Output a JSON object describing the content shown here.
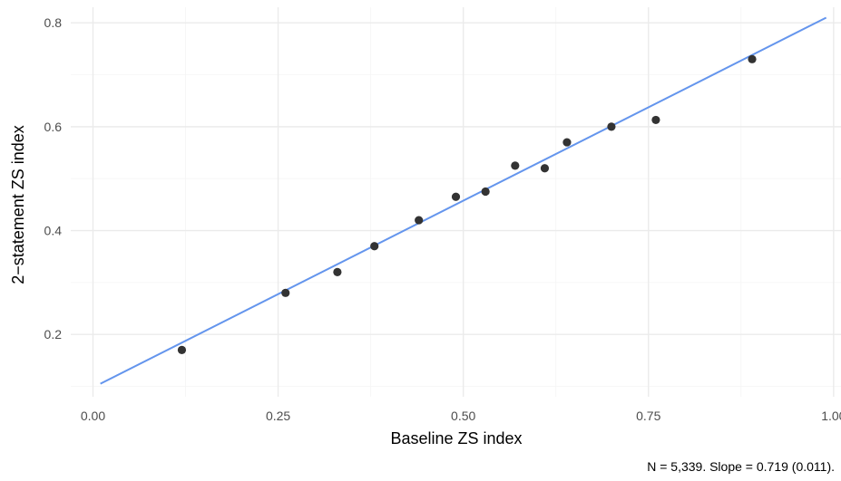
{
  "chart_data": {
    "type": "scatter",
    "title": "",
    "xlabel": "Baseline ZS index",
    "ylabel": "2−statement ZS index",
    "caption": "N = 5,339. Slope = 0.719 (0.011).",
    "xlim": [
      -0.03,
      1.01
    ],
    "ylim": [
      0.08,
      0.83
    ],
    "x_ticks": [
      0.0,
      0.25,
      0.5,
      0.75,
      1.0
    ],
    "x_tick_labels": [
      "0.00",
      "0.25",
      "0.50",
      "0.75",
      "1.00"
    ],
    "y_ticks": [
      0.2,
      0.4,
      0.6,
      0.8
    ],
    "y_tick_labels": [
      "0.2",
      "0.4",
      "0.6",
      "0.8"
    ],
    "grid": true,
    "points": [
      {
        "x": 0.12,
        "y": 0.17
      },
      {
        "x": 0.26,
        "y": 0.28
      },
      {
        "x": 0.33,
        "y": 0.32
      },
      {
        "x": 0.38,
        "y": 0.37
      },
      {
        "x": 0.44,
        "y": 0.42
      },
      {
        "x": 0.49,
        "y": 0.465
      },
      {
        "x": 0.53,
        "y": 0.475
      },
      {
        "x": 0.57,
        "y": 0.525
      },
      {
        "x": 0.61,
        "y": 0.52
      },
      {
        "x": 0.64,
        "y": 0.57
      },
      {
        "x": 0.7,
        "y": 0.6
      },
      {
        "x": 0.76,
        "y": 0.613
      },
      {
        "x": 0.89,
        "y": 0.73
      }
    ],
    "fit_line": {
      "x": [
        0.01,
        0.99
      ],
      "y": [
        0.105,
        0.81
      ]
    },
    "point_color": "#333333",
    "line_color": "#6495ED"
  }
}
